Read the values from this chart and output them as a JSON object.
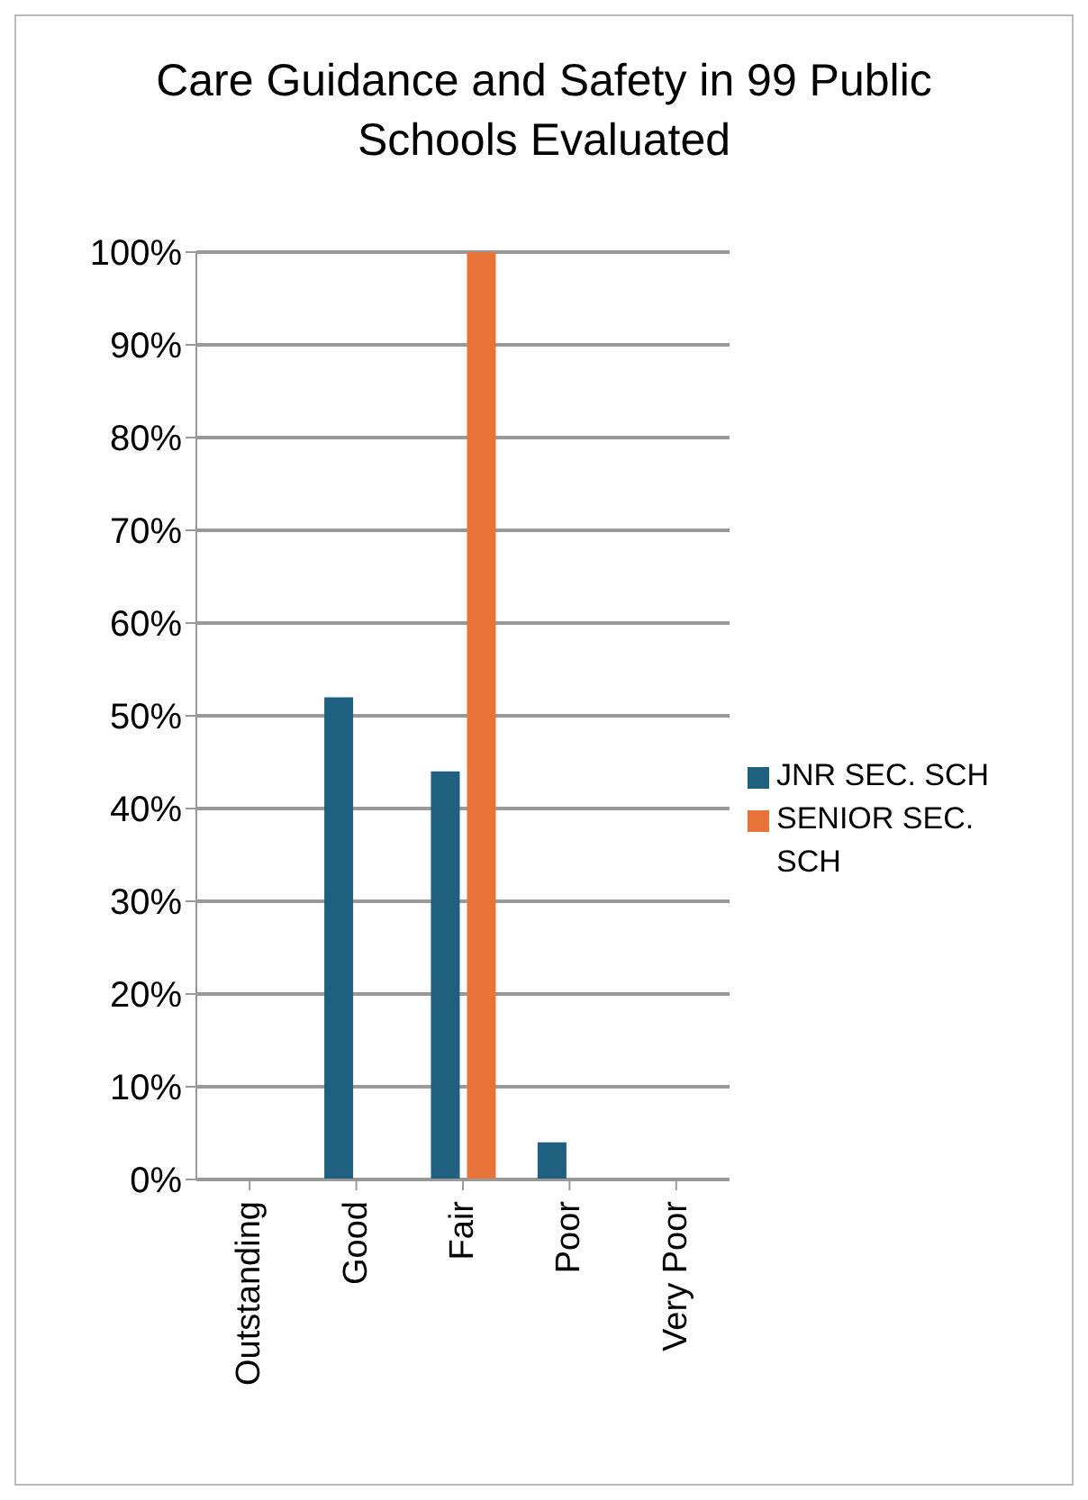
{
  "chart_data": {
    "type": "bar",
    "title": "Care Guidance and Safety in 99 Public Schools  Evaluated",
    "categories": [
      "Outstanding",
      "Good",
      "Fair",
      "Poor",
      "Very Poor"
    ],
    "series": [
      {
        "name": "JNR SEC. SCH",
        "color": "#1f5f7f",
        "values": [
          0,
          52,
          44,
          4,
          0
        ]
      },
      {
        "name": "SENIOR SEC. SCH",
        "color": "#e8733a",
        "values": [
          0,
          0,
          100,
          0,
          0
        ]
      }
    ],
    "ylim": [
      0,
      100
    ],
    "yticks": [
      {
        "value": 0,
        "label": "0%"
      },
      {
        "value": 10,
        "label": "10%"
      },
      {
        "value": 20,
        "label": "20%"
      },
      {
        "value": 30,
        "label": "30%"
      },
      {
        "value": 40,
        "label": "40%"
      },
      {
        "value": 50,
        "label": "50%"
      },
      {
        "value": 60,
        "label": "60%"
      },
      {
        "value": 70,
        "label": "70%"
      },
      {
        "value": 80,
        "label": "80%"
      },
      {
        "value": 90,
        "label": "90%"
      },
      {
        "value": 100,
        "label": "100%"
      }
    ],
    "grid": "y",
    "legend": "right"
  }
}
